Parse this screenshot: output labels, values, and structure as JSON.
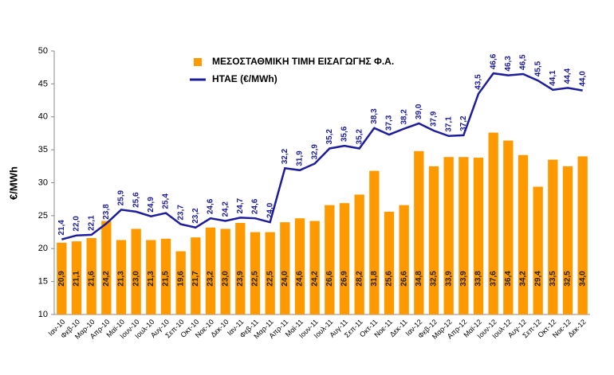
{
  "chart_data": {
    "type": "bar",
    "y_label": "€/MWh",
    "categories": [
      "Ιαν-10",
      "Φεβ-10",
      "Μαρ-10",
      "Απρ-10",
      "Μαϊ-10",
      "Ιουν-10",
      "Ιουλ-10",
      "Αυγ-10",
      "Σεπ-10",
      "Οκτ-10",
      "Νοε-10",
      "Δεκ-10",
      "Ιαν-11",
      "Φεβ-11",
      "Μαρ-11",
      "Απρ-11",
      "Μαϊ-11",
      "Ιουν-11",
      "Ιουλ-11",
      "Αυγ-11",
      "Σεπ-11",
      "Οκτ-11",
      "Νοε-11",
      "Δεκ-11",
      "Ιαν-12",
      "Φεβ-12",
      "Μαρ-12",
      "Απρ-12",
      "Μαϊ-12",
      "Ιουν-12",
      "Ιουλ-12",
      "Αυγ-12",
      "Σεπ-12",
      "Οκτ-12",
      "Νοε-12",
      "Δεκ-12"
    ],
    "series": [
      {
        "name": "ΜΕΣΟΣΤΑΘΜΙΚΗ ΤΙΜΗ ΕΙΣΑΓΩΓΗΣ Φ.Α.",
        "type": "bar",
        "color": "#ff9900",
        "values": [
          20.9,
          21.1,
          21.6,
          24.2,
          21.3,
          23.0,
          21.3,
          21.5,
          19.6,
          21.7,
          23.2,
          23.0,
          23.9,
          22.5,
          22.5,
          24.0,
          24.6,
          24.2,
          26.6,
          26.9,
          28.2,
          31.8,
          25.6,
          26.6,
          34.8,
          32.5,
          33.9,
          33.9,
          33.8,
          37.6,
          36.4,
          34.2,
          29.4,
          33.5,
          32.5,
          34.0
        ],
        "value_labels": [
          "20,9",
          "21,1",
          "21,6",
          "24,2",
          "21,3",
          "23,0",
          "21,3",
          "21,5",
          "19,6",
          "21,7",
          "23,2",
          "23,0",
          "23,9",
          "22,5",
          "22,5",
          "24,0",
          "24,6",
          "24,2",
          "26,6",
          "26,9",
          "28,2",
          "31,8",
          "25,6",
          "26,6",
          "34,8",
          "32,5",
          "33,9",
          "33,9",
          "33,8",
          "37,6",
          "36,4",
          "34,2",
          "29,4",
          "33,5",
          "32,5",
          "34,0"
        ]
      },
      {
        "name": "ΗΤΑΕ (€/MWh)",
        "type": "line",
        "color": "#1c1c9c",
        "values": [
          21.4,
          22.0,
          22.1,
          23.8,
          25.9,
          25.6,
          24.9,
          25.4,
          23.7,
          23.2,
          24.6,
          24.2,
          24.7,
          24.6,
          24.0,
          32.2,
          31.9,
          32.9,
          35.2,
          35.6,
          35.2,
          38.3,
          37.3,
          38.2,
          39.0,
          37.9,
          37.1,
          37.2,
          43.5,
          46.6,
          46.3,
          46.5,
          45.5,
          44.1,
          44.4,
          44.0
        ],
        "value_labels": [
          "21,4",
          "22,0",
          "22,1",
          "23,8",
          "25,9",
          "25,6",
          "24,9",
          "25,4",
          "23,7",
          "23,2",
          "24,6",
          "24,2",
          "24,7",
          "24,6",
          "24,0",
          "32,2",
          "31,9",
          "32,9",
          "35,2",
          "35,6",
          "35,2",
          "38,3",
          "37,3",
          "38,2",
          "39,0",
          "37,9",
          "37,1",
          "37,2",
          "43,5",
          "46,6",
          "46,3",
          "46,5",
          "45,5",
          "44,1",
          "44,4",
          "44,0"
        ]
      }
    ],
    "ylim": [
      10,
      50
    ],
    "yticks": [
      10,
      15,
      20,
      25,
      30,
      35,
      40,
      45,
      50
    ],
    "grid": false
  }
}
